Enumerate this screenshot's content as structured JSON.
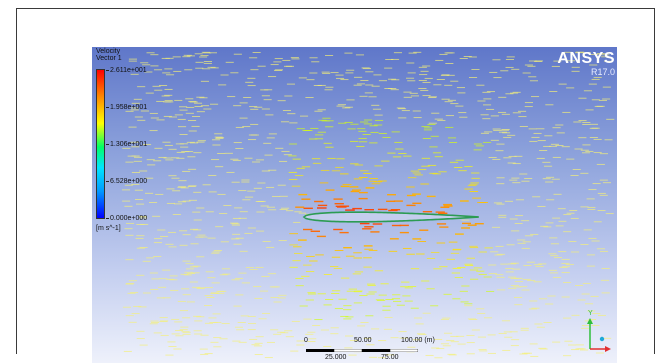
{
  "legend": {
    "title_line1": "Velocity",
    "title_line2": "Vector 1",
    "ticks": [
      "2.611e+001",
      "1.958e+001",
      "1.306e+001",
      "6.528e+000",
      "0.000e+000"
    ],
    "units": "[m s^-1]"
  },
  "brand": {
    "name": "ANSYS",
    "version": "R17.0"
  },
  "scale": {
    "labels_top": [
      "0",
      "50.00",
      "100.00 (m)"
    ],
    "labels_bottom": [
      "25.000",
      "75.00"
    ]
  },
  "axes": {
    "y_label": "Y"
  },
  "colors": {
    "max": "#ff0000",
    "mid": "#00ff66",
    "min": "#0000ff",
    "background_top": "#5f77c9",
    "background_bottom": "#eef1fb",
    "vector_free": "#f5f078"
  }
}
